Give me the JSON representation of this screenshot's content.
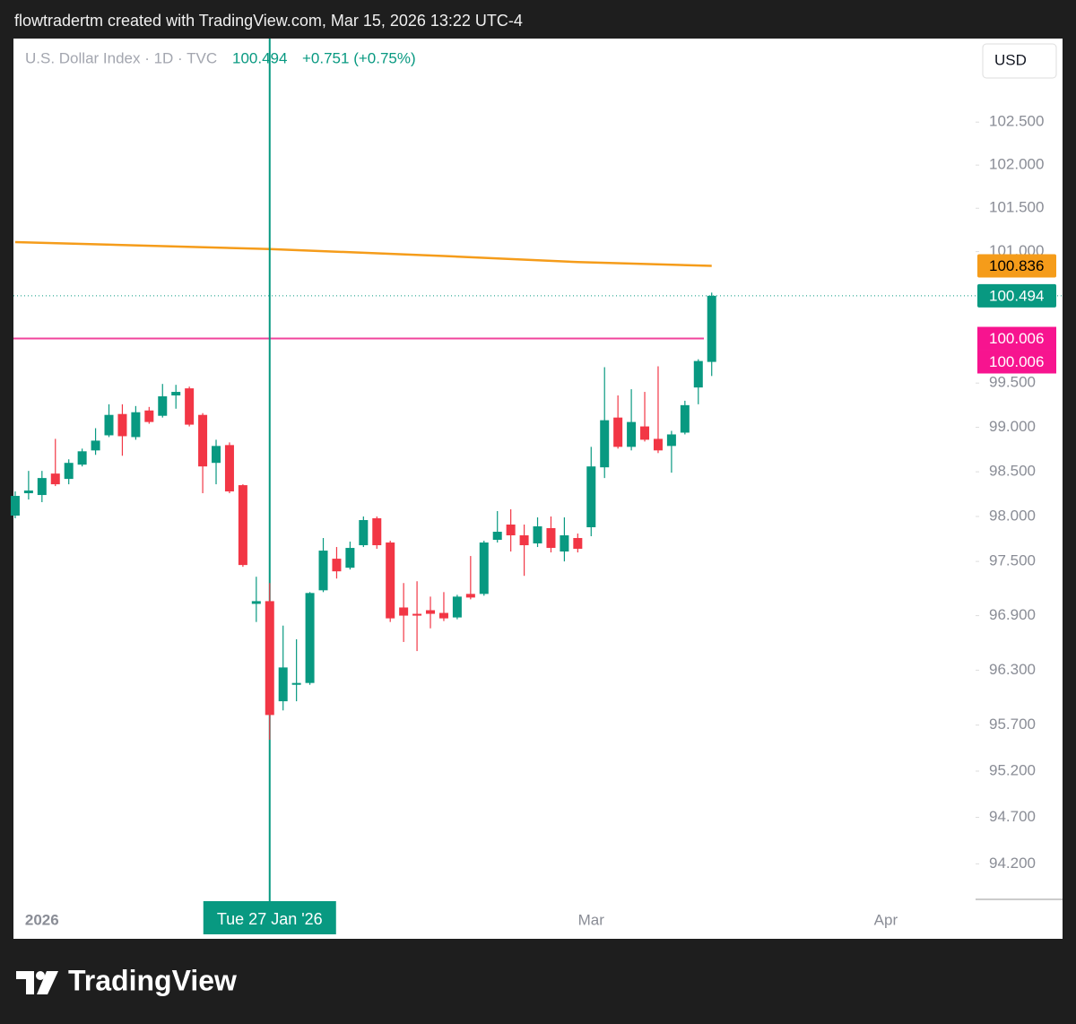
{
  "attribution": "flowtradertm created with TradingView.com, Mar 15, 2026 13:22 UTC-4",
  "brand": "TradingView",
  "chart_data": {
    "type": "candlestick",
    "symbol": "U.S. Dollar Index · 1D · TVC",
    "last": 100.494,
    "change": "+0.751 (+0.75%)",
    "currency": "USD",
    "log_scale": true,
    "up_color": "#089981",
    "down_color": "#f23645",
    "xlim": [
      -0.13,
      71.7
    ],
    "ylim": [
      93.82,
      103.48
    ],
    "yticks": [
      {
        "value": 102.5,
        "label": "102.500"
      },
      {
        "value": 102,
        "label": "102.000"
      },
      {
        "value": 101.5,
        "label": "101.500"
      },
      {
        "value": 101,
        "label": "101.000"
      },
      {
        "value": 99.5,
        "label": "99.500"
      },
      {
        "value": 99,
        "label": "99.000"
      },
      {
        "value": 98.5,
        "label": "98.500"
      },
      {
        "value": 98,
        "label": "98.000"
      },
      {
        "value": 97.5,
        "label": "97.500"
      },
      {
        "value": 96.9,
        "label": "96.900"
      },
      {
        "value": 96.3,
        "label": "96.300"
      },
      {
        "value": 95.7,
        "label": "95.700"
      },
      {
        "value": 95.2,
        "label": "95.200"
      },
      {
        "value": 94.7,
        "label": "94.700"
      },
      {
        "value": 94.2,
        "label": "94.200"
      }
    ],
    "x_labels": [
      {
        "index": 2,
        "label": "2026"
      },
      {
        "index": 43,
        "label": "Mar"
      },
      {
        "index": 65,
        "label": "Apr"
      }
    ],
    "crosshair": {
      "index": 19,
      "label": "Tue 27 Jan '26"
    },
    "open": [
      98.01,
      98.26,
      98.24,
      98.48,
      98.42,
      98.58,
      98.74,
      98.91,
      99.15,
      98.89,
      99.19,
      99.13,
      99.36,
      99.44,
      99.14,
      98.6,
      98.8,
      98.35,
      97.03,
      97.06,
      95.96,
      96.14,
      96.16,
      97.18,
      97.53,
      97.43,
      97.68,
      97.98,
      97.71,
      96.99,
      96.92,
      96.96,
      96.93,
      96.88,
      97.14,
      97.14,
      97.74,
      97.91,
      97.79,
      97.7,
      97.87,
      97.61,
      97.76,
      97.88,
      98.55,
      99.11,
      98.78,
      99.01,
      98.87,
      98.79,
      98.94,
      99.45,
      99.74
    ],
    "high": [
      98.28,
      98.51,
      98.51,
      98.87,
      98.64,
      98.76,
      98.99,
      99.26,
      99.26,
      99.24,
      99.23,
      99.49,
      99.48,
      99.46,
      99.16,
      98.86,
      98.83,
      98.36,
      97.33,
      97.26,
      96.79,
      96.64,
      97.16,
      97.76,
      97.66,
      97.72,
      98.0,
      98.0,
      97.73,
      97.26,
      97.28,
      97.11,
      97.16,
      97.13,
      97.56,
      97.73,
      98.06,
      98.08,
      97.91,
      97.99,
      98.0,
      97.99,
      97.81,
      98.78,
      99.68,
      99.36,
      99.43,
      99.4,
      99.69,
      98.96,
      99.3,
      99.77,
      100.53
    ],
    "low": [
      97.98,
      98.19,
      98.16,
      98.34,
      98.36,
      98.56,
      98.69,
      98.89,
      98.68,
      98.86,
      99.04,
      99.11,
      99.21,
      99.01,
      98.26,
      98.36,
      98.26,
      97.44,
      96.83,
      95.54,
      95.86,
      95.96,
      96.14,
      97.16,
      97.31,
      97.41,
      97.66,
      97.64,
      96.83,
      96.61,
      96.51,
      96.76,
      96.84,
      96.86,
      97.08,
      97.12,
      97.71,
      97.61,
      97.34,
      97.66,
      97.6,
      97.5,
      97.6,
      97.78,
      98.43,
      98.76,
      98.74,
      98.84,
      98.71,
      98.49,
      98.92,
      99.26,
      99.58
    ],
    "close": [
      98.23,
      98.29,
      98.43,
      98.36,
      98.6,
      98.73,
      98.85,
      99.14,
      98.9,
      99.17,
      99.06,
      99.35,
      99.4,
      99.03,
      98.56,
      98.79,
      98.28,
      97.46,
      97.06,
      95.81,
      96.33,
      96.16,
      97.15,
      97.62,
      97.39,
      97.65,
      97.96,
      97.68,
      96.87,
      96.9,
      96.9,
      96.92,
      96.87,
      97.11,
      97.1,
      97.71,
      97.83,
      97.79,
      97.68,
      97.89,
      97.65,
      97.79,
      97.64,
      98.56,
      99.08,
      98.78,
      99.06,
      98.86,
      98.74,
      98.92,
      99.25,
      99.75,
      100.494
    ],
    "moving_average": {
      "color": "#f59c1a",
      "x": [
        0,
        19,
        32,
        42,
        52
      ],
      "values": [
        101.11,
        101.03,
        100.95,
        100.88,
        100.836
      ]
    },
    "levels": [
      {
        "value": 100.006,
        "color": "#f0449c"
      },
      {
        "value": 100.006,
        "color": "#f0449c"
      }
    ]
  }
}
